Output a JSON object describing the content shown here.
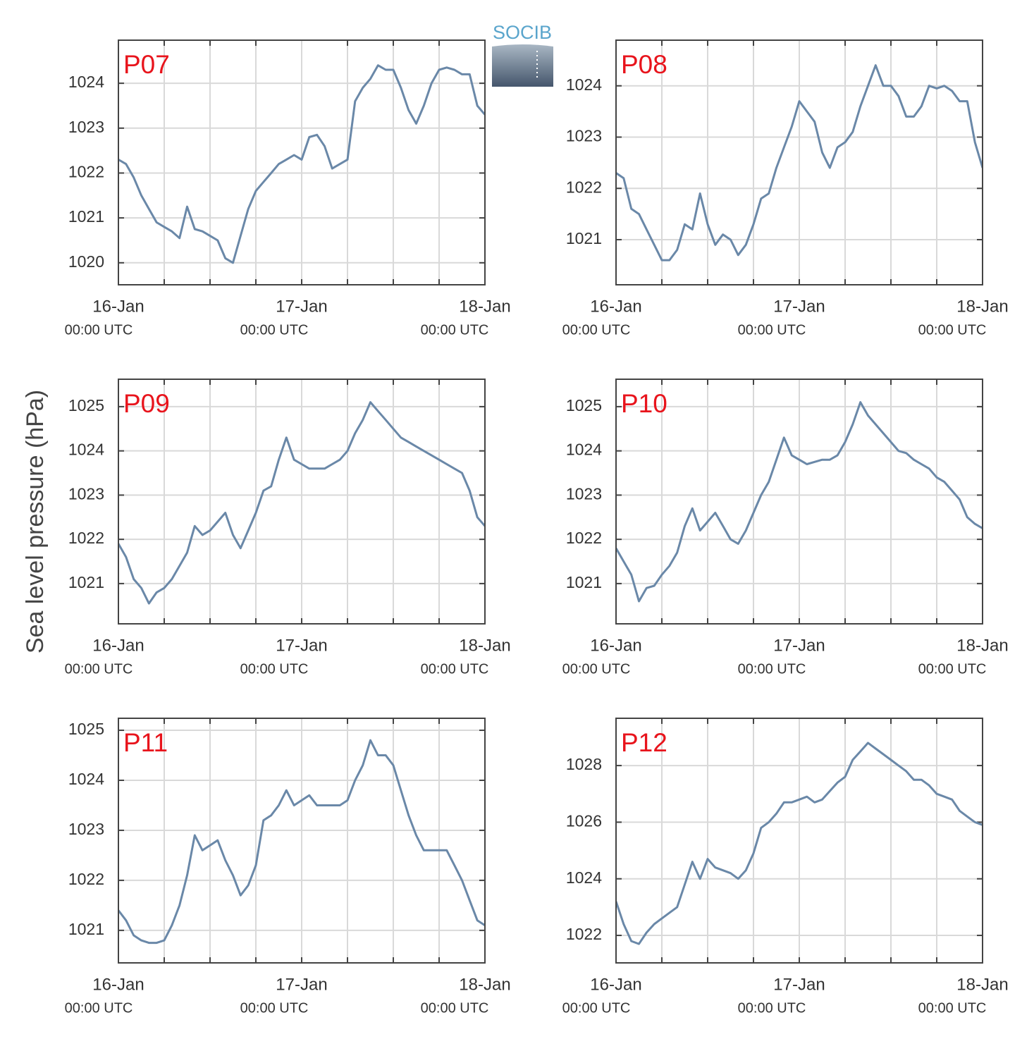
{
  "ylabel": "Sea level pressure (hPa)",
  "logo": "SOCIB",
  "chart_data": [
    {
      "type": "line",
      "title": "P07",
      "x": [
        0,
        1,
        2,
        3,
        4,
        5,
        6,
        7,
        8,
        9,
        10,
        11,
        12,
        13,
        14,
        15,
        16,
        17,
        18,
        19,
        20,
        21,
        22,
        23,
        24,
        25,
        26,
        27,
        28,
        29,
        30,
        31,
        32,
        33,
        34,
        35,
        36,
        37,
        38,
        39,
        40,
        41,
        42,
        43,
        44,
        45,
        46,
        47,
        48
      ],
      "series": [
        {
          "color": "#6a88a8",
          "values": [
            1022.3,
            1022.2,
            1021.9,
            1021.5,
            1021.2,
            1020.9,
            1020.8,
            1020.7,
            1020.55,
            1021.25,
            1020.75,
            1020.7,
            1020.6,
            1020.5,
            1020.1,
            1020.0,
            1020.6,
            1021.2,
            1021.6,
            1021.8,
            1022.0,
            1022.2,
            1022.3,
            1022.4,
            1022.3,
            1022.8,
            1022.85,
            1022.6,
            1022.1,
            1022.2,
            1022.3,
            1023.6,
            1023.9,
            1024.1,
            1024.4,
            1024.3,
            1024.3,
            1023.9,
            1023.4,
            1023.1,
            1023.5,
            1024.0,
            1024.3,
            1024.35,
            1024.3,
            1024.2,
            1024.2,
            1023.5,
            1023.3
          ]
        }
      ],
      "xlim": [
        0,
        48
      ],
      "xticks": [
        {
          "value": 0,
          "label": "16-Jan",
          "time": "00:00 UTC"
        },
        {
          "value": 24,
          "label": "17-Jan",
          "time": "00:00 UTC"
        },
        {
          "value": 48,
          "label": "18-Jan",
          "time": "00:00 UTC"
        }
      ],
      "xminorticks": [
        6,
        12,
        18,
        30,
        36,
        42
      ],
      "ylim": [
        1019.51,
        1024.96
      ],
      "yticks": [
        1020,
        1021,
        1022,
        1023,
        1024
      ],
      "grid": true
    },
    {
      "type": "line",
      "title": "P08",
      "x": [
        0,
        1,
        2,
        3,
        4,
        5,
        6,
        7,
        8,
        9,
        10,
        11,
        12,
        13,
        14,
        15,
        16,
        17,
        18,
        19,
        20,
        21,
        22,
        23,
        24,
        25,
        26,
        27,
        28,
        29,
        30,
        31,
        32,
        33,
        34,
        35,
        36,
        37,
        38,
        39,
        40,
        41,
        42,
        43,
        44,
        45,
        46,
        47,
        48
      ],
      "series": [
        {
          "color": "#6a88a8",
          "values": [
            1022.3,
            1022.2,
            1021.6,
            1021.5,
            1021.2,
            1020.9,
            1020.6,
            1020.6,
            1020.8,
            1021.3,
            1021.2,
            1021.9,
            1021.3,
            1020.9,
            1021.1,
            1021.0,
            1020.7,
            1020.9,
            1021.3,
            1021.8,
            1021.9,
            1022.4,
            1022.8,
            1023.2,
            1023.7,
            1023.5,
            1023.3,
            1022.7,
            1022.4,
            1022.8,
            1022.9,
            1023.1,
            1023.6,
            1024.0,
            1024.4,
            1024.0,
            1024.0,
            1023.8,
            1023.4,
            1023.4,
            1023.6,
            1024.0,
            1023.95,
            1024.0,
            1023.9,
            1023.7,
            1023.7,
            1022.9,
            1022.4
          ]
        }
      ],
      "xlim": [
        0,
        48
      ],
      "xticks": [
        {
          "value": 0,
          "label": "16-Jan",
          "time": "00:00 UTC"
        },
        {
          "value": 24,
          "label": "17-Jan",
          "time": "00:00 UTC"
        },
        {
          "value": 48,
          "label": "18-Jan",
          "time": "00:00 UTC"
        }
      ],
      "xminorticks": [
        6,
        12,
        18,
        30,
        36,
        42
      ],
      "ylim": [
        1020.12,
        1024.89
      ],
      "yticks": [
        1021,
        1022,
        1023,
        1024
      ],
      "grid": true
    },
    {
      "type": "line",
      "title": "P09",
      "x": [
        0,
        1,
        2,
        3,
        4,
        5,
        6,
        7,
        8,
        9,
        10,
        11,
        12,
        13,
        14,
        15,
        16,
        17,
        18,
        19,
        20,
        21,
        22,
        23,
        24,
        25,
        26,
        27,
        28,
        29,
        30,
        31,
        32,
        33,
        34,
        35,
        36,
        37,
        38,
        39,
        40,
        41,
        42,
        43,
        44,
        45,
        46,
        47,
        48
      ],
      "series": [
        {
          "color": "#6a88a8",
          "values": [
            1021.9,
            1021.6,
            1021.1,
            1020.9,
            1020.55,
            1020.8,
            1020.9,
            1021.1,
            1021.4,
            1021.7,
            1022.3,
            1022.1,
            1022.2,
            1022.4,
            1022.6,
            1022.1,
            1021.8,
            1022.2,
            1022.6,
            1023.1,
            1023.2,
            1023.8,
            1024.3,
            1023.8,
            1023.7,
            1023.6,
            1023.6,
            1023.6,
            1023.7,
            1023.8,
            1024.0,
            1024.4,
            1024.7,
            1025.1,
            1024.9,
            1024.7,
            1024.5,
            1024.3,
            1024.2,
            1024.1,
            1024.0,
            1023.9,
            1023.8,
            1023.7,
            1023.6,
            1023.5,
            1023.1,
            1022.5,
            1022.3
          ]
        }
      ],
      "xlim": [
        0,
        48
      ],
      "xticks": [
        {
          "value": 0,
          "label": "16-Jan",
          "time": "00:00 UTC"
        },
        {
          "value": 24,
          "label": "17-Jan",
          "time": "00:00 UTC"
        },
        {
          "value": 48,
          "label": "18-Jan",
          "time": "00:00 UTC"
        }
      ],
      "xminorticks": [
        6,
        12,
        18,
        30,
        36,
        42
      ],
      "ylim": [
        1020.09,
        1025.62
      ],
      "yticks": [
        1021,
        1022,
        1023,
        1024,
        1025
      ],
      "grid": true
    },
    {
      "type": "line",
      "title": "P10",
      "x": [
        0,
        1,
        2,
        3,
        4,
        5,
        6,
        7,
        8,
        9,
        10,
        11,
        12,
        13,
        14,
        15,
        16,
        17,
        18,
        19,
        20,
        21,
        22,
        23,
        24,
        25,
        26,
        27,
        28,
        29,
        30,
        31,
        32,
        33,
        34,
        35,
        36,
        37,
        38,
        39,
        40,
        41,
        42,
        43,
        44,
        45,
        46,
        47,
        48
      ],
      "series": [
        {
          "color": "#6a88a8",
          "values": [
            1021.8,
            1021.5,
            1021.2,
            1020.6,
            1020.9,
            1020.95,
            1021.2,
            1021.4,
            1021.7,
            1022.3,
            1022.7,
            1022.2,
            1022.4,
            1022.6,
            1022.3,
            1022.0,
            1021.9,
            1022.2,
            1022.6,
            1023.0,
            1023.3,
            1023.8,
            1024.3,
            1023.9,
            1023.8,
            1023.7,
            1023.75,
            1023.8,
            1023.8,
            1023.9,
            1024.2,
            1024.6,
            1025.1,
            1024.8,
            1024.6,
            1024.4,
            1024.2,
            1024.0,
            1023.95,
            1023.8,
            1023.7,
            1023.6,
            1023.4,
            1023.3,
            1023.1,
            1022.9,
            1022.5,
            1022.35,
            1022.25
          ]
        }
      ],
      "xlim": [
        0,
        48
      ],
      "xticks": [
        {
          "value": 0,
          "label": "16-Jan",
          "time": "00:00 UTC"
        },
        {
          "value": 24,
          "label": "17-Jan",
          "time": "00:00 UTC"
        },
        {
          "value": 48,
          "label": "18-Jan",
          "time": "00:00 UTC"
        }
      ],
      "xminorticks": [
        6,
        12,
        18,
        30,
        36,
        42
      ],
      "ylim": [
        1020.09,
        1025.62
      ],
      "yticks": [
        1021,
        1022,
        1023,
        1024,
        1025
      ],
      "grid": true
    },
    {
      "type": "line",
      "title": "P11",
      "x": [
        0,
        1,
        2,
        3,
        4,
        5,
        6,
        7,
        8,
        9,
        10,
        11,
        12,
        13,
        14,
        15,
        16,
        17,
        18,
        19,
        20,
        21,
        22,
        23,
        24,
        25,
        26,
        27,
        28,
        29,
        30,
        31,
        32,
        33,
        34,
        35,
        36,
        37,
        38,
        39,
        40,
        41,
        42,
        43,
        44,
        45,
        46,
        47,
        48
      ],
      "series": [
        {
          "color": "#6a88a8",
          "values": [
            1021.4,
            1021.2,
            1020.9,
            1020.8,
            1020.75,
            1020.75,
            1020.8,
            1021.1,
            1021.5,
            1022.1,
            1022.9,
            1022.6,
            1022.7,
            1022.8,
            1022.4,
            1022.1,
            1021.7,
            1021.9,
            1022.3,
            1023.2,
            1023.3,
            1023.5,
            1023.8,
            1023.5,
            1023.6,
            1023.7,
            1023.5,
            1023.5,
            1023.5,
            1023.5,
            1023.6,
            1024.0,
            1024.3,
            1024.8,
            1024.5,
            1024.5,
            1024.3,
            1023.8,
            1023.3,
            1022.9,
            1022.6,
            1022.6,
            1022.6,
            1022.6,
            1022.3,
            1022.0,
            1021.6,
            1021.2,
            1021.1
          ]
        }
      ],
      "xlim": [
        0,
        48
      ],
      "xticks": [
        {
          "value": 0,
          "label": "16-Jan",
          "time": "00:00 UTC"
        },
        {
          "value": 24,
          "label": "17-Jan",
          "time": "00:00 UTC"
        },
        {
          "value": 48,
          "label": "18-Jan",
          "time": "00:00 UTC"
        }
      ],
      "xminorticks": [
        6,
        12,
        18,
        30,
        36,
        42
      ],
      "ylim": [
        1020.35,
        1025.24
      ],
      "yticks": [
        1021,
        1022,
        1023,
        1024,
        1025
      ],
      "grid": true
    },
    {
      "type": "line",
      "title": "P12",
      "x": [
        0,
        1,
        2,
        3,
        4,
        5,
        6,
        7,
        8,
        9,
        10,
        11,
        12,
        13,
        14,
        15,
        16,
        17,
        18,
        19,
        20,
        21,
        22,
        23,
        24,
        25,
        26,
        27,
        28,
        29,
        30,
        31,
        32,
        33,
        34,
        35,
        36,
        37,
        38,
        39,
        40,
        41,
        42,
        43,
        44,
        45,
        46,
        47,
        48
      ],
      "series": [
        {
          "color": "#6a88a8",
          "values": [
            1023.2,
            1022.4,
            1021.8,
            1021.7,
            1022.1,
            1022.4,
            1022.6,
            1022.8,
            1023.0,
            1023.8,
            1024.6,
            1024.0,
            1024.7,
            1024.4,
            1024.3,
            1024.2,
            1024.0,
            1024.3,
            1024.9,
            1025.8,
            1026.0,
            1026.3,
            1026.7,
            1026.7,
            1026.8,
            1026.9,
            1026.7,
            1026.8,
            1027.1,
            1027.4,
            1027.6,
            1028.2,
            1028.5,
            1028.8,
            1028.6,
            1028.4,
            1028.2,
            1028.0,
            1027.8,
            1027.5,
            1027.5,
            1027.3,
            1027.0,
            1026.9,
            1026.8,
            1026.4,
            1026.2,
            1026.0,
            1025.9
          ]
        }
      ],
      "xlim": [
        0,
        48
      ],
      "xticks": [
        {
          "value": 0,
          "label": "16-Jan",
          "time": "00:00 UTC"
        },
        {
          "value": 24,
          "label": "17-Jan",
          "time": "00:00 UTC"
        },
        {
          "value": 48,
          "label": "18-Jan",
          "time": "00:00 UTC"
        }
      ],
      "xminorticks": [
        6,
        12,
        18,
        30,
        36,
        42
      ],
      "ylim": [
        1021.03,
        1029.67
      ],
      "yticks": [
        1022,
        1024,
        1026,
        1028
      ],
      "grid": true
    }
  ]
}
